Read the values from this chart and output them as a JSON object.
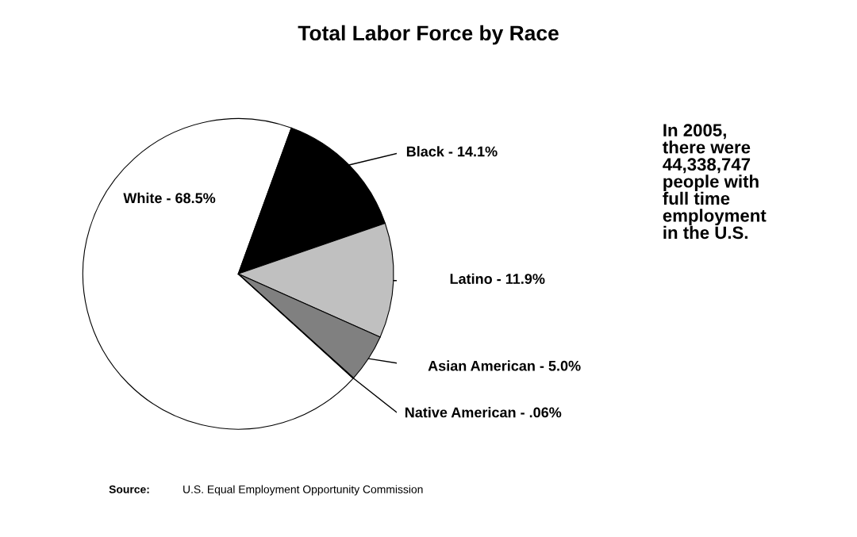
{
  "chart_data": {
    "type": "pie",
    "title": "Total Labor Force by Race",
    "categories": [
      "White - 68.5%",
      "Black - 14.1%",
      "Latino - 11.9%",
      "Asian American - 5.0%",
      "Native American - .06%"
    ],
    "values": [
      68.5,
      14.1,
      11.9,
      5.0,
      0.06
    ],
    "colors": [
      "#ffffff",
      "#000000",
      "#c0c0c0",
      "#808080",
      "#000000"
    ],
    "annotations": [
      "In 2005,\nthere were\n44,338,747\npeople with\nfull time\nemployment\nin the U.S.",
      "Source:",
      "U.S. Equal Employment Opportunity Commission"
    ]
  }
}
